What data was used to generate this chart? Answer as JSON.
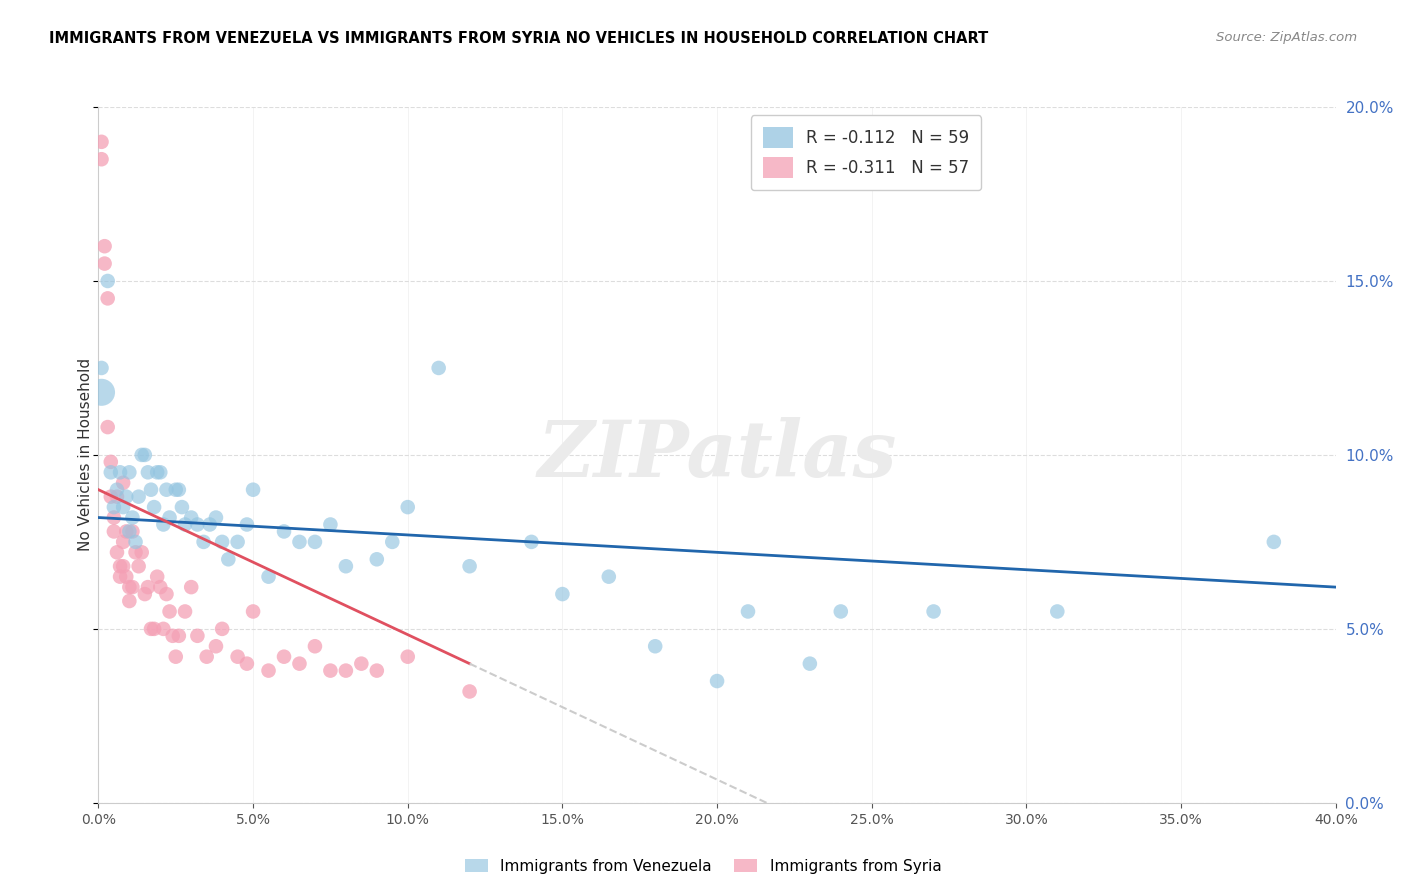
{
  "title": "IMMIGRANTS FROM VENEZUELA VS IMMIGRANTS FROM SYRIA NO VEHICLES IN HOUSEHOLD CORRELATION CHART",
  "source": "Source: ZipAtlas.com",
  "ylabel": "No Vehicles in Household",
  "xmin": 0.0,
  "xmax": 0.4,
  "ymin": 0.0,
  "ymax": 0.2,
  "legend1_R": "R = -0.112",
  "legend1_N": "N = 59",
  "legend2_R": "R = -0.311",
  "legend2_N": "N = 57",
  "blue_color": "#93c4e0",
  "pink_color": "#f4a0b5",
  "blue_line_color": "#2166ac",
  "pink_line_color": "#e05060",
  "watermark_color": "#ebebeb",
  "venezuela_x": [
    0.001,
    0.003,
    0.004,
    0.005,
    0.006,
    0.007,
    0.008,
    0.009,
    0.01,
    0.01,
    0.011,
    0.012,
    0.013,
    0.014,
    0.015,
    0.016,
    0.017,
    0.018,
    0.019,
    0.02,
    0.021,
    0.022,
    0.023,
    0.025,
    0.026,
    0.027,
    0.028,
    0.03,
    0.032,
    0.034,
    0.036,
    0.038,
    0.04,
    0.042,
    0.045,
    0.048,
    0.05,
    0.055,
    0.06,
    0.065,
    0.07,
    0.075,
    0.08,
    0.09,
    0.095,
    0.1,
    0.11,
    0.12,
    0.14,
    0.15,
    0.165,
    0.18,
    0.2,
    0.21,
    0.23,
    0.24,
    0.27,
    0.31,
    0.38
  ],
  "venezuela_y": [
    0.125,
    0.15,
    0.095,
    0.085,
    0.09,
    0.095,
    0.085,
    0.088,
    0.095,
    0.078,
    0.082,
    0.075,
    0.088,
    0.1,
    0.1,
    0.095,
    0.09,
    0.085,
    0.095,
    0.095,
    0.08,
    0.09,
    0.082,
    0.09,
    0.09,
    0.085,
    0.08,
    0.082,
    0.08,
    0.075,
    0.08,
    0.082,
    0.075,
    0.07,
    0.075,
    0.08,
    0.09,
    0.065,
    0.078,
    0.075,
    0.075,
    0.08,
    0.068,
    0.07,
    0.075,
    0.085,
    0.125,
    0.068,
    0.075,
    0.06,
    0.065,
    0.045,
    0.035,
    0.055,
    0.04,
    0.055,
    0.055,
    0.055,
    0.075
  ],
  "venezuela_outlier_x": [
    0.001
  ],
  "venezuela_outlier_y": [
    0.118
  ],
  "venezuela_outlier_size": 400,
  "syria_x": [
    0.001,
    0.001,
    0.002,
    0.002,
    0.003,
    0.003,
    0.004,
    0.004,
    0.005,
    0.005,
    0.006,
    0.006,
    0.007,
    0.007,
    0.008,
    0.008,
    0.008,
    0.009,
    0.009,
    0.01,
    0.01,
    0.011,
    0.011,
    0.012,
    0.013,
    0.014,
    0.015,
    0.016,
    0.017,
    0.018,
    0.019,
    0.02,
    0.021,
    0.022,
    0.023,
    0.024,
    0.025,
    0.026,
    0.028,
    0.03,
    0.032,
    0.035,
    0.038,
    0.04,
    0.045,
    0.048,
    0.05,
    0.055,
    0.06,
    0.065,
    0.07,
    0.075,
    0.08,
    0.085,
    0.09,
    0.1,
    0.12
  ],
  "syria_y": [
    0.19,
    0.185,
    0.16,
    0.155,
    0.145,
    0.108,
    0.098,
    0.088,
    0.082,
    0.078,
    0.088,
    0.072,
    0.068,
    0.065,
    0.092,
    0.075,
    0.068,
    0.078,
    0.065,
    0.062,
    0.058,
    0.078,
    0.062,
    0.072,
    0.068,
    0.072,
    0.06,
    0.062,
    0.05,
    0.05,
    0.065,
    0.062,
    0.05,
    0.06,
    0.055,
    0.048,
    0.042,
    0.048,
    0.055,
    0.062,
    0.048,
    0.042,
    0.045,
    0.05,
    0.042,
    0.04,
    0.055,
    0.038,
    0.042,
    0.04,
    0.045,
    0.038,
    0.038,
    0.04,
    0.038,
    0.042,
    0.032
  ],
  "pink_line_x_end": 0.12,
  "pink_line_start_y": 0.09,
  "pink_line_end_y": 0.04,
  "blue_line_start_y": 0.082,
  "blue_line_end_y": 0.062
}
